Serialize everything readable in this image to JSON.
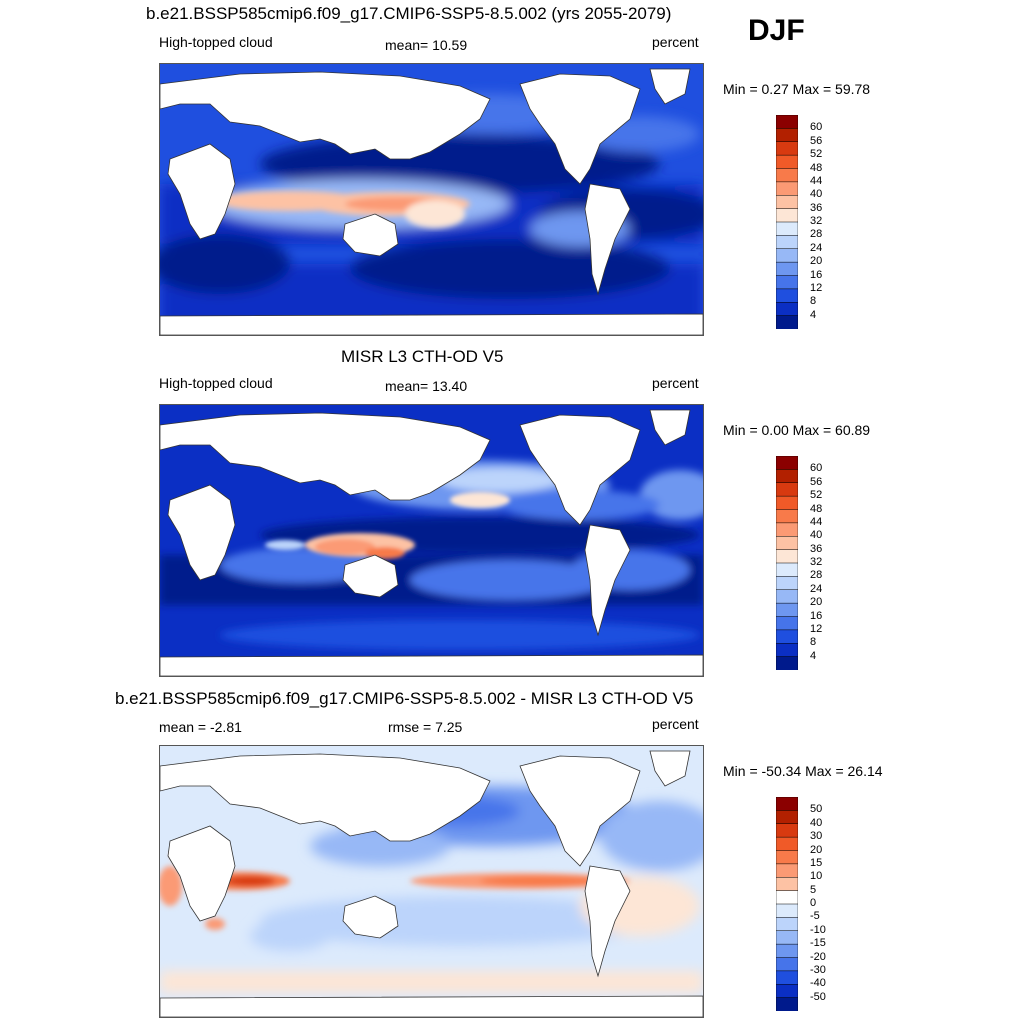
{
  "season": "DJF",
  "panels": [
    {
      "title": "b.e21.BSSP585cmip6.f09_g17.CMIP6-SSP5-8.5.002 (yrs 2055-2079)",
      "left_label": "High-topped cloud",
      "center_label": "mean=  10.59",
      "right_label": "percent",
      "minmax": "Min =   0.27 Max =  59.78",
      "colorbar_labels": [
        "60",
        "56",
        "52",
        "48",
        "44",
        "40",
        "36",
        "32",
        "28",
        "24",
        "20",
        "16",
        "12",
        "8",
        "4"
      ],
      "colorbar_colors": [
        "#8b0000",
        "#b22000",
        "#d83a10",
        "#f05a28",
        "#f87a4a",
        "#fb9a74",
        "#fdc2a4",
        "#fde6d6",
        "#dceafc",
        "#bcd4fb",
        "#97b8f6",
        "#6e97f0",
        "#4674ea",
        "#1f4fdf",
        "#0b2fc4",
        "#001a8c"
      ],
      "scale": "positive"
    },
    {
      "title": "MISR L3 CTH-OD V5",
      "left_label": "High-topped cloud",
      "center_label": "mean=  13.40",
      "right_label": "percent",
      "minmax": "Min =   0.00 Max =  60.89",
      "colorbar_labels": [
        "60",
        "56",
        "52",
        "48",
        "44",
        "40",
        "36",
        "32",
        "28",
        "24",
        "20",
        "16",
        "12",
        "8",
        "4"
      ],
      "colorbar_colors": [
        "#8b0000",
        "#b22000",
        "#d83a10",
        "#f05a28",
        "#f87a4a",
        "#fb9a74",
        "#fdc2a4",
        "#fde6d6",
        "#dceafc",
        "#bcd4fb",
        "#97b8f6",
        "#6e97f0",
        "#4674ea",
        "#1f4fdf",
        "#0b2fc4",
        "#001a8c"
      ],
      "scale": "positive"
    },
    {
      "title": "b.e21.BSSP585cmip6.f09_g17.CMIP6-SSP5-8.5.002 - MISR L3 CTH-OD V5",
      "left_label": "mean =  -2.81",
      "center_label": "rmse =   7.25",
      "right_label": "percent",
      "minmax": "Min = -50.34 Max =  26.14",
      "colorbar_labels": [
        "50",
        "40",
        "30",
        "20",
        "15",
        "10",
        "5",
        "0",
        "-5",
        "-10",
        "-15",
        "-20",
        "-30",
        "-40",
        "-50"
      ],
      "colorbar_colors": [
        "#8b0000",
        "#b22000",
        "#d83a10",
        "#f05a28",
        "#f87a4a",
        "#fb9a74",
        "#fdc2a4",
        "#ffffff",
        "#dceafc",
        "#bcd4fb",
        "#97b8f6",
        "#6e97f0",
        "#4674ea",
        "#1f4fdf",
        "#0b2fc4",
        "#001a8c"
      ],
      "scale": "difference"
    }
  ]
}
